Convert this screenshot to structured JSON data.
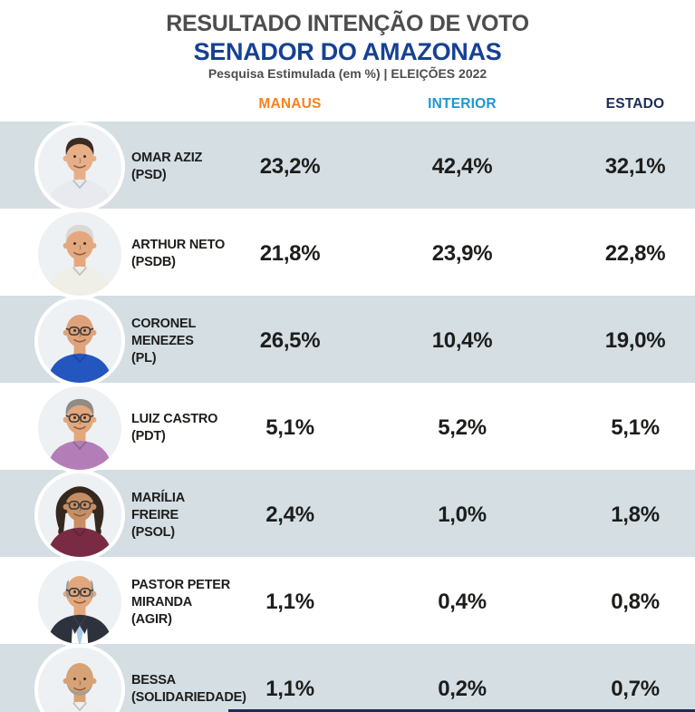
{
  "header": {
    "title": "RESULTADO INTENÇÃO DE VOTO",
    "subtitle": "SENADOR DO AMAZONAS",
    "tagline": "Pesquisa Estimulada (em %) | ELEIÇÕES 2022"
  },
  "columns": [
    {
      "key": "manaus",
      "label": "MANAUS",
      "color": "#F6821F"
    },
    {
      "key": "interior",
      "label": "INTERIOR",
      "color": "#2095D3"
    },
    {
      "key": "estado",
      "label": "ESTADO",
      "color": "#1C2B58"
    }
  ],
  "colors": {
    "title": "#4D4D4F",
    "subtitle": "#164193",
    "row_shade": "#D4DEE3",
    "text": "#1D1D1B",
    "bottom_bar": "#1C2B58"
  },
  "candidates": [
    {
      "name": "OMAR AZIZ",
      "party": "(PSD)",
      "manaus": "23,2%",
      "interior": "42,4%",
      "estado": "32,1%",
      "avatar": {
        "skin": "#E6AF88",
        "shirt": "#E9EAF0",
        "hair": "short",
        "hair_color": "#3A2C22",
        "glasses": false,
        "beard": false,
        "suit": false
      }
    },
    {
      "name": "ARTHUR NETO",
      "party": "(PSDB)",
      "manaus": "21,8%",
      "interior": "23,9%",
      "estado": "22,8%",
      "avatar": {
        "skin": "#E5A87E",
        "shirt": "#EFEEE7",
        "hair": "short",
        "hair_color": "#D9D9D6",
        "glasses": false,
        "beard": false,
        "suit": false
      }
    },
    {
      "name": "CORONEL MENEZES",
      "party": "(PL)",
      "manaus": "26,5%",
      "interior": "10,4%",
      "estado": "19,0%",
      "avatar": {
        "skin": "#DFA27B",
        "shirt": "#2456C0",
        "hair": "none",
        "hair_color": "#888888",
        "glasses": true,
        "beard": false,
        "suit": false
      }
    },
    {
      "name": "LUIZ CASTRO",
      "party": "(PDT)",
      "manaus": "5,1%",
      "interior": "5,2%",
      "estado": "5,1%",
      "avatar": {
        "skin": "#E2A77D",
        "shirt": "#B37EB7",
        "hair": "short",
        "hair_color": "#8F8C86",
        "glasses": true,
        "beard": false,
        "suit": false
      }
    },
    {
      "name": "MARÍLIA FREIRE",
      "party": "(PSOL)",
      "manaus": "2,4%",
      "interior": "1,0%",
      "estado": "1,8%",
      "avatar": {
        "skin": "#C78E63",
        "shirt": "#7A2B44",
        "hair": "curly",
        "hair_color": "#35291F",
        "glasses": true,
        "beard": false,
        "suit": false
      }
    },
    {
      "name": "PASTOR PETER MIRANDA",
      "party": "(AGIR)",
      "manaus": "1,1%",
      "interior": "0,4%",
      "estado": "0,8%",
      "avatar": {
        "skin": "#E2A77D",
        "shirt": "#2E323C",
        "hair": "side",
        "hair_color": "#9E9C96",
        "glasses": true,
        "beard": false,
        "suit": true,
        "tie": "#A9CBE8"
      }
    },
    {
      "name": "BESSA",
      "party": "(SOLIDARIEDADE)",
      "manaus": "1,1%",
      "interior": "0,2%",
      "estado": "0,7%",
      "avatar": {
        "skin": "#D7A276",
        "shirt": "#EDEFF1",
        "hair": "none",
        "hair_color": "#999999",
        "glasses": false,
        "beard": true,
        "suit": false
      }
    }
  ],
  "chart_data": {
    "type": "table",
    "title": "RESULTADO INTENÇÃO DE VOTO — SENADOR DO AMAZONAS",
    "subtitle": "Pesquisa Estimulada (em %) | ELEIÇÕES 2022",
    "columns": [
      "MANAUS",
      "INTERIOR",
      "ESTADO"
    ],
    "rows": [
      {
        "candidate": "OMAR AZIZ (PSD)",
        "manaus": 23.2,
        "interior": 42.4,
        "estado": 32.1
      },
      {
        "candidate": "ARTHUR NETO (PSDB)",
        "manaus": 21.8,
        "interior": 23.9,
        "estado": 22.8
      },
      {
        "candidate": "CORONEL MENEZES (PL)",
        "manaus": 26.5,
        "interior": 10.4,
        "estado": 19.0
      },
      {
        "candidate": "LUIZ CASTRO (PDT)",
        "manaus": 5.1,
        "interior": 5.2,
        "estado": 5.1
      },
      {
        "candidate": "MARÍLIA FREIRE (PSOL)",
        "manaus": 2.4,
        "interior": 1.0,
        "estado": 1.8
      },
      {
        "candidate": "PASTOR PETER MIRANDA (AGIR)",
        "manaus": 1.1,
        "interior": 0.4,
        "estado": 0.8
      },
      {
        "candidate": "BESSA (SOLIDARIEDADE)",
        "manaus": 1.1,
        "interior": 0.2,
        "estado": 0.7
      }
    ]
  }
}
